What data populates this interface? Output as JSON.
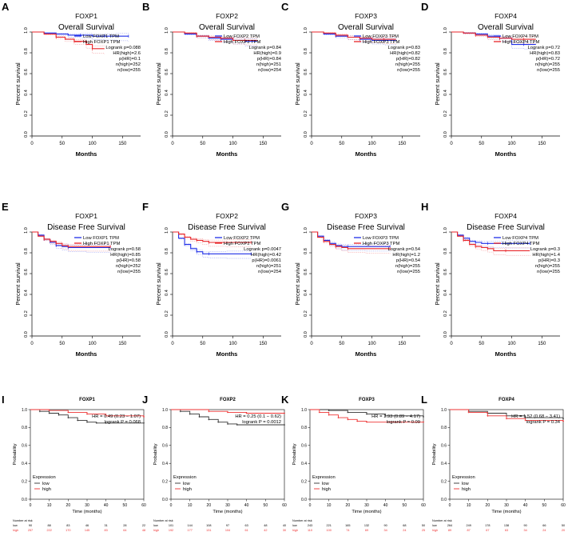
{
  "colors": {
    "low": "#1f2fe8",
    "high": "#e8262a",
    "axis": "#000000",
    "ci": "#c9c9c9",
    "km_low": "#333333",
    "km_high": "#ee3333"
  },
  "chart_data": [
    {
      "letter": "A",
      "style": "gepia",
      "type": "line",
      "gene": "FOXP1",
      "title": "Overall Survival",
      "xlabel": "Months",
      "ylabel": "Percent survival",
      "xlim": [
        0,
        180
      ],
      "ylim": [
        0,
        1
      ],
      "xticks": [
        0,
        50,
        100,
        150
      ],
      "yticks": [
        0.0,
        0.2,
        0.4,
        0.6,
        0.8,
        1.0
      ],
      "legend": [
        "Low FOXP1 TPM",
        "High FOXP1 TPM"
      ],
      "stats": [
        "Logrank p=0.088",
        "HR(high)=2.6",
        "p(HR)=0.1",
        "n(high)=252",
        "n(low)=255"
      ],
      "series": [
        {
          "name": "Low FOXP1 TPM",
          "x": [
            0,
            20,
            40,
            60,
            80,
            100,
            120,
            140,
            160
          ],
          "y": [
            1.0,
            0.99,
            0.98,
            0.97,
            0.97,
            0.96,
            0.96,
            0.96,
            0.96
          ]
        },
        {
          "name": "High FOXP1 TPM",
          "x": [
            0,
            20,
            40,
            55,
            70,
            90,
            100,
            120
          ],
          "y": [
            1.0,
            0.98,
            0.95,
            0.93,
            0.91,
            0.88,
            0.84,
            0.84
          ]
        }
      ]
    },
    {
      "letter": "B",
      "style": "gepia",
      "type": "line",
      "gene": "FOXP2",
      "title": "Overall Survival",
      "xlabel": "Months",
      "ylabel": "Percent survival",
      "xlim": [
        0,
        180
      ],
      "ylim": [
        0,
        1
      ],
      "xticks": [
        0,
        50,
        100,
        150
      ],
      "yticks": [
        0.0,
        0.2,
        0.4,
        0.6,
        0.8,
        1.0
      ],
      "legend": [
        "Low FOXP2 TPM",
        "High FOXP2 TPM"
      ],
      "stats": [
        "Logrank p=0.84",
        "HR(high)=0.9",
        "p(HR)=0.84",
        "n(high)=251",
        "n(low)=254"
      ],
      "series": [
        {
          "name": "Low FOXP2 TPM",
          "x": [
            0,
            20,
            40,
            60,
            80,
            100,
            120,
            140
          ],
          "y": [
            1.0,
            0.98,
            0.96,
            0.94,
            0.93,
            0.92,
            0.91,
            0.91
          ]
        },
        {
          "name": "High FOXP2 TPM",
          "x": [
            0,
            20,
            40,
            60,
            80,
            100,
            120,
            140
          ],
          "y": [
            1.0,
            0.99,
            0.96,
            0.95,
            0.94,
            0.92,
            0.92,
            0.92
          ]
        }
      ]
    },
    {
      "letter": "C",
      "style": "gepia",
      "type": "line",
      "gene": "FOXP3",
      "title": "Overall Survival",
      "xlabel": "Months",
      "ylabel": "Percent survival",
      "xlim": [
        0,
        180
      ],
      "ylim": [
        0,
        1
      ],
      "xticks": [
        0,
        50,
        100,
        150
      ],
      "yticks": [
        0.0,
        0.2,
        0.4,
        0.6,
        0.8,
        1.0
      ],
      "legend": [
        "Low FOXP3 TPM",
        "High FOXP3 TPM"
      ],
      "stats": [
        "Logrank p=0.83",
        "HR(high)=0.82",
        "p(HR)=0.82",
        "n(high)=255",
        "n(low)=255"
      ],
      "series": [
        {
          "name": "Low FOXP3 TPM",
          "x": [
            0,
            20,
            40,
            60,
            80,
            100,
            120,
            140
          ],
          "y": [
            1.0,
            0.98,
            0.96,
            0.95,
            0.93,
            0.92,
            0.92,
            0.92
          ]
        },
        {
          "name": "High FOXP3 TPM",
          "x": [
            0,
            20,
            40,
            60,
            80,
            100,
            120,
            140
          ],
          "y": [
            1.0,
            0.99,
            0.97,
            0.95,
            0.94,
            0.93,
            0.93,
            0.93
          ]
        }
      ]
    },
    {
      "letter": "D",
      "style": "gepia",
      "type": "line",
      "gene": "FOXP4",
      "title": "Overall Survival",
      "xlabel": "Months",
      "ylabel": "Percent survival",
      "xlim": [
        0,
        180
      ],
      "ylim": [
        0,
        1
      ],
      "xticks": [
        0,
        50,
        100,
        150
      ],
      "yticks": [
        0.0,
        0.2,
        0.4,
        0.6,
        0.8,
        1.0
      ],
      "legend": [
        "Low FOXP4 TPM",
        "High FOXP4 TPM"
      ],
      "stats": [
        "Logrank p=0.72",
        "HR(high)=0.83",
        "p(HR)=0.72",
        "n(high)=255",
        "n(low)=255"
      ],
      "series": [
        {
          "name": "Low FOXP4 TPM",
          "x": [
            0,
            20,
            40,
            60,
            80,
            100,
            120,
            140
          ],
          "y": [
            1.0,
            0.99,
            0.98,
            0.96,
            0.94,
            0.88,
            0.88,
            0.88
          ]
        },
        {
          "name": "High FOXP4 TPM",
          "x": [
            0,
            20,
            40,
            60,
            80,
            100,
            120,
            140
          ],
          "y": [
            1.0,
            0.99,
            0.97,
            0.95,
            0.94,
            0.93,
            0.93,
            0.93
          ]
        }
      ]
    },
    {
      "letter": "E",
      "style": "gepia",
      "type": "line",
      "gene": "FOXP1",
      "title": "Disease Free Survival",
      "xlabel": "Months",
      "ylabel": "Percent survival",
      "xlim": [
        0,
        180
      ],
      "ylim": [
        0,
        1
      ],
      "xticks": [
        0,
        50,
        100,
        150
      ],
      "yticks": [
        0.0,
        0.2,
        0.4,
        0.6,
        0.8,
        1.0
      ],
      "legend": [
        "Low FOXP1 TPM",
        "High FOXP1 TPM"
      ],
      "stats": [
        "Logrank p=0.58",
        "HR(high)=0.85",
        "p(HR)=0.58",
        "n(high)=252",
        "n(low)=255"
      ],
      "series": [
        {
          "name": "Low FOXP1 TPM",
          "x": [
            0,
            10,
            20,
            30,
            40,
            50,
            60,
            90,
            130
          ],
          "y": [
            1.0,
            0.97,
            0.93,
            0.9,
            0.87,
            0.86,
            0.85,
            0.85,
            0.85
          ]
        },
        {
          "name": "High FOXP1 TPM",
          "x": [
            0,
            10,
            20,
            30,
            40,
            50,
            60,
            90,
            130
          ],
          "y": [
            1.0,
            0.96,
            0.93,
            0.91,
            0.89,
            0.87,
            0.86,
            0.86,
            0.86
          ]
        }
      ]
    },
    {
      "letter": "F",
      "style": "gepia",
      "type": "line",
      "gene": "FOXP2",
      "title": "Disease Free Survival",
      "xlabel": "Months",
      "ylabel": "Percent survival",
      "xlim": [
        0,
        180
      ],
      "ylim": [
        0,
        1
      ],
      "xticks": [
        0,
        50,
        100,
        150
      ],
      "yticks": [
        0.0,
        0.2,
        0.4,
        0.6,
        0.8,
        1.0
      ],
      "legend": [
        "Low FOXP2 TPM",
        "High FOXP2 TPM"
      ],
      "stats": [
        "Logrank p=0.0047",
        "HR(high)=0.42",
        "p(HR)=0.0061",
        "n(high)=251",
        "n(low)=254"
      ],
      "series": [
        {
          "name": "Low FOXP2 TPM",
          "x": [
            0,
            10,
            20,
            30,
            40,
            50,
            60,
            90,
            130
          ],
          "y": [
            1.0,
            0.94,
            0.88,
            0.84,
            0.81,
            0.79,
            0.79,
            0.79,
            0.79
          ]
        },
        {
          "name": "High FOXP2 TPM",
          "x": [
            0,
            10,
            20,
            30,
            40,
            50,
            60,
            90,
            130
          ],
          "y": [
            1.0,
            0.98,
            0.95,
            0.93,
            0.92,
            0.91,
            0.9,
            0.9,
            0.9
          ]
        }
      ]
    },
    {
      "letter": "G",
      "style": "gepia",
      "type": "line",
      "gene": "FOXP3",
      "title": "Disease Free Survival",
      "xlabel": "Months",
      "ylabel": "Percent survival",
      "xlim": [
        0,
        180
      ],
      "ylim": [
        0,
        1
      ],
      "xticks": [
        0,
        50,
        100,
        150
      ],
      "yticks": [
        0.0,
        0.2,
        0.4,
        0.6,
        0.8,
        1.0
      ],
      "legend": [
        "Low FOXP3 TPM",
        "High FOXP3 TPM"
      ],
      "stats": [
        "Logrank p=0.54",
        "HR(high)=1.2",
        "p(HR)=0.54",
        "n(high)=255",
        "n(low)=255"
      ],
      "series": [
        {
          "name": "Low FOXP3 TPM",
          "x": [
            0,
            10,
            20,
            30,
            40,
            50,
            60,
            90,
            130
          ],
          "y": [
            1.0,
            0.96,
            0.92,
            0.89,
            0.87,
            0.86,
            0.86,
            0.86,
            0.86
          ]
        },
        {
          "name": "High FOXP3 TPM",
          "x": [
            0,
            10,
            20,
            30,
            40,
            50,
            60,
            90,
            130
          ],
          "y": [
            1.0,
            0.95,
            0.91,
            0.88,
            0.86,
            0.85,
            0.84,
            0.84,
            0.84
          ]
        }
      ]
    },
    {
      "letter": "H",
      "style": "gepia",
      "type": "line",
      "gene": "FOXP4",
      "title": "Disease Free Survival",
      "xlabel": "Months",
      "ylabel": "Percent survival",
      "xlim": [
        0,
        180
      ],
      "ylim": [
        0,
        1
      ],
      "xticks": [
        0,
        50,
        100,
        150
      ],
      "yticks": [
        0.0,
        0.2,
        0.4,
        0.6,
        0.8,
        1.0
      ],
      "legend": [
        "Low FOXP4 TPM",
        "High FOXP4 TPM"
      ],
      "stats": [
        "Logrank p=0.3",
        "HR(high)=1.4",
        "p(HR)=0.3",
        "n(high)=255",
        "n(low)=255"
      ],
      "series": [
        {
          "name": "Low FOXP4 TPM",
          "x": [
            0,
            10,
            20,
            30,
            40,
            50,
            60,
            90,
            130
          ],
          "y": [
            1.0,
            0.97,
            0.94,
            0.91,
            0.9,
            0.89,
            0.89,
            0.89,
            0.89
          ]
        },
        {
          "name": "High FOXP4 TPM",
          "x": [
            0,
            10,
            20,
            30,
            40,
            50,
            60,
            70,
            90,
            130
          ],
          "y": [
            1.0,
            0.96,
            0.92,
            0.88,
            0.86,
            0.85,
            0.84,
            0.82,
            0.82,
            0.82
          ]
        }
      ]
    },
    {
      "letter": "I",
      "style": "km",
      "type": "line",
      "gene": "FOXP1",
      "xlabel": "Time (months)",
      "ylabel": "Probability",
      "xlim": [
        0,
        60
      ],
      "ylim": [
        0,
        1
      ],
      "xticks": [
        0,
        10,
        20,
        30,
        40,
        50,
        60
      ],
      "yticks": [
        0.0,
        0.2,
        0.4,
        0.6,
        0.8,
        1.0
      ],
      "stats": [
        "HR = 0.49 (0.23 − 1.07)",
        "logrank P = 0.068"
      ],
      "legend_title": "Expression",
      "legend": [
        "low",
        "high"
      ],
      "risk_title": "Number at risk",
      "risk": {
        "low": [
          "90",
          "88",
          "83",
          "46",
          "31",
          "28",
          "22"
        ],
        "high": [
          "257",
          "222",
          "170",
          "145",
          "83",
          "64",
          "48"
        ]
      },
      "series": [
        {
          "name": "low",
          "x": [
            0,
            5,
            10,
            15,
            20,
            25,
            30,
            35,
            40,
            60
          ],
          "y": [
            1.0,
            0.98,
            0.96,
            0.94,
            0.91,
            0.88,
            0.86,
            0.85,
            0.85,
            0.85
          ]
        },
        {
          "name": "high",
          "x": [
            0,
            10,
            20,
            30,
            40,
            60
          ],
          "y": [
            1.0,
            0.99,
            0.97,
            0.95,
            0.93,
            0.92
          ]
        }
      ]
    },
    {
      "letter": "J",
      "style": "km",
      "type": "line",
      "gene": "FOXP2",
      "xlabel": "Time (months)",
      "ylabel": "Probability",
      "xlim": [
        0,
        60
      ],
      "ylim": [
        0,
        1
      ],
      "xticks": [
        0,
        10,
        20,
        30,
        40,
        50,
        60
      ],
      "yticks": [
        0.0,
        0.2,
        0.4,
        0.6,
        0.8,
        1.0
      ],
      "stats": [
        "HR = 0.25 (0.1 − 0.62)",
        "logrank P = 0.0012"
      ],
      "legend_title": "Expression",
      "legend": [
        "low",
        "high"
      ],
      "risk_title": "Number at risk",
      "risk": {
        "low": [
          "101",
          "144",
          "108",
          "97",
          "63",
          "48",
          "40"
        ],
        "high": [
          "192",
          "177",
          "131",
          "104",
          "61",
          "42",
          "30"
        ]
      },
      "series": [
        {
          "name": "low",
          "x": [
            0,
            5,
            10,
            15,
            20,
            25,
            30,
            35,
            60
          ],
          "y": [
            1.0,
            0.98,
            0.95,
            0.92,
            0.89,
            0.86,
            0.84,
            0.83,
            0.83
          ]
        },
        {
          "name": "high",
          "x": [
            0,
            20,
            30,
            40,
            60
          ],
          "y": [
            1.0,
            0.98,
            0.97,
            0.96,
            0.96
          ]
        }
      ]
    },
    {
      "letter": "K",
      "style": "km",
      "type": "line",
      "gene": "FOXP3",
      "xlabel": "Time (months)",
      "ylabel": "Probability",
      "xlim": [
        0,
        60
      ],
      "ylim": [
        0,
        1
      ],
      "xticks": [
        0,
        10,
        20,
        30,
        40,
        50,
        60
      ],
      "yticks": [
        0.0,
        0.2,
        0.4,
        0.6,
        0.8,
        1.0
      ],
      "stats": [
        "HR = 1.93 (0.89 − 4.17)",
        "logrank P = 0.09"
      ],
      "legend_title": "Expression",
      "legend": [
        "low",
        "high"
      ],
      "risk_title": "Number at risk",
      "risk": {
        "low": [
          "243",
          "221",
          "165",
          "132",
          "90",
          "68",
          "50"
        ],
        "high": [
          "110",
          "100",
          "74",
          "69",
          "34",
          "24",
          "25"
        ]
      },
      "series": [
        {
          "name": "low",
          "x": [
            0,
            10,
            20,
            30,
            40,
            60
          ],
          "y": [
            1.0,
            0.99,
            0.97,
            0.95,
            0.93,
            0.92
          ]
        },
        {
          "name": "high",
          "x": [
            0,
            5,
            10,
            15,
            20,
            25,
            30,
            60
          ],
          "y": [
            1.0,
            0.97,
            0.94,
            0.91,
            0.89,
            0.87,
            0.86,
            0.86
          ]
        }
      ]
    },
    {
      "letter": "L",
      "style": "km",
      "type": "line",
      "gene": "FOXP4",
      "xlabel": "Time (months)",
      "ylabel": "Probability",
      "xlim": [
        0,
        60
      ],
      "ylim": [
        0,
        1
      ],
      "xticks": [
        0,
        10,
        20,
        30,
        40,
        50,
        60
      ],
      "yticks": [
        0.0,
        0.2,
        0.4,
        0.6,
        0.8,
        1.0
      ],
      "stats": [
        "HR = 1.52 (0.68 − 3.41)",
        "logrank P = 0.34"
      ],
      "legend_title": "Expression",
      "legend": [
        "low",
        "high"
      ],
      "risk_title": "Number at risk",
      "risk": {
        "low": [
          "264",
          "249",
          "178",
          "138",
          "90",
          "66",
          "50"
        ],
        "high": [
          "89",
          "87",
          "67",
          "63",
          "34",
          "24",
          "20"
        ]
      },
      "series": [
        {
          "name": "low",
          "x": [
            0,
            10,
            20,
            30,
            40,
            60
          ],
          "y": [
            1.0,
            0.98,
            0.96,
            0.93,
            0.91,
            0.9
          ]
        },
        {
          "name": "high",
          "x": [
            0,
            10,
            20,
            30,
            40,
            60
          ],
          "y": [
            1.0,
            0.97,
            0.93,
            0.9,
            0.88,
            0.87
          ]
        }
      ]
    }
  ]
}
